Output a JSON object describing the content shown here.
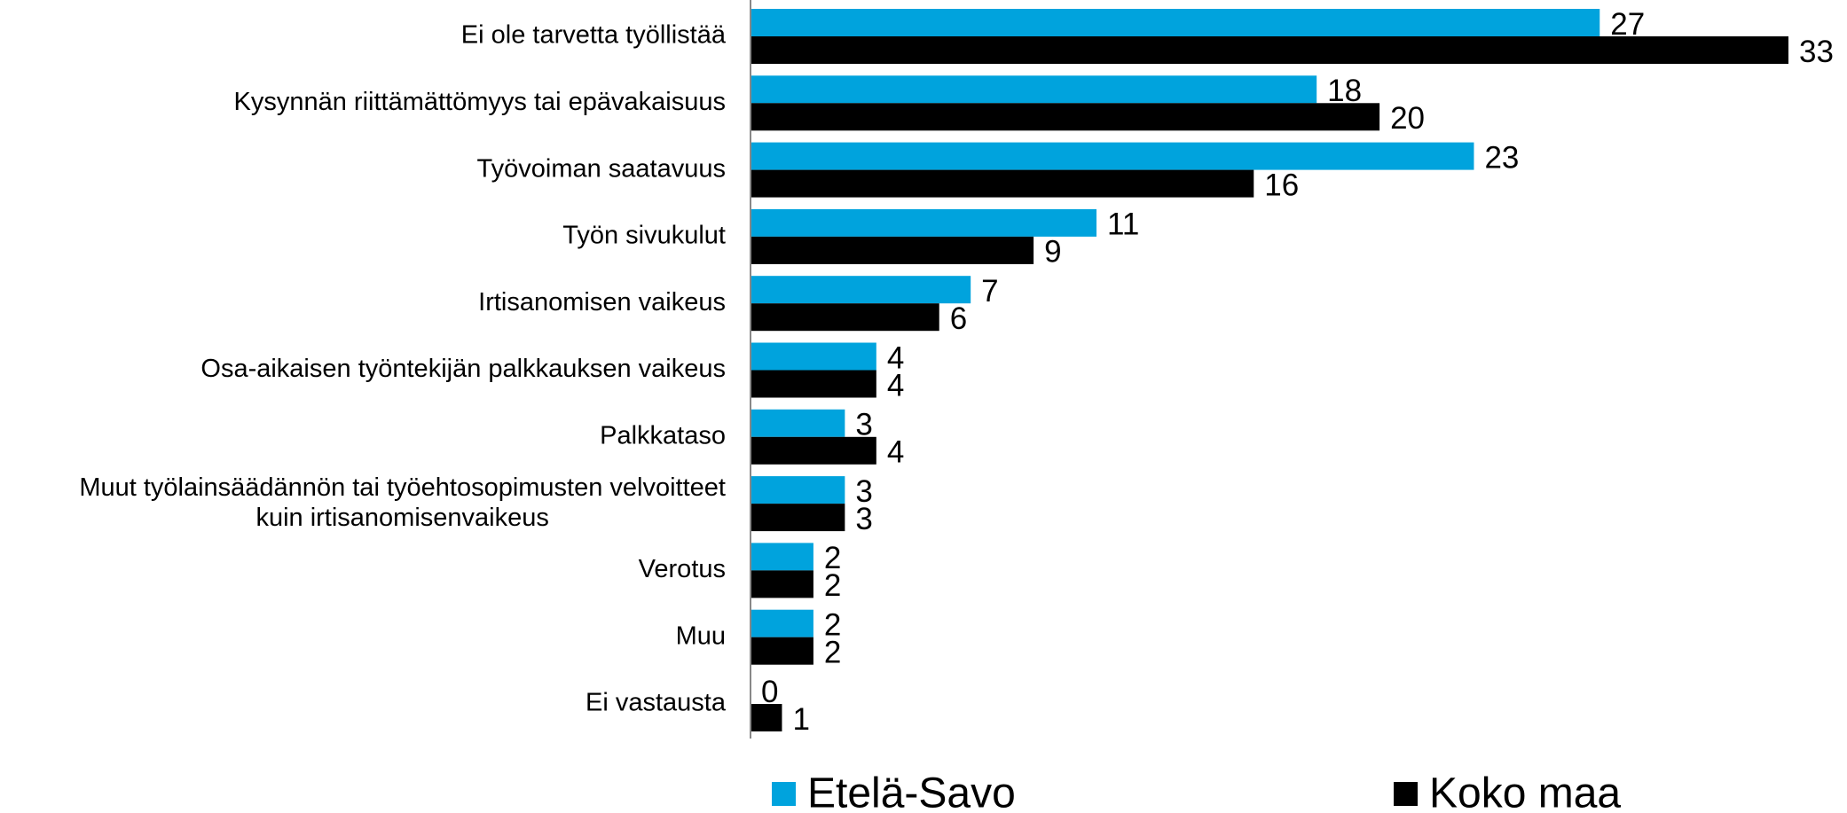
{
  "chart_data": {
    "type": "bar",
    "orientation": "horizontal",
    "categories": [
      "Ei ole tarvetta työllistää",
      "Kysynnän riittämättömyys tai epävakaisuus",
      "Työvoiman saatavuus",
      "Työn sivukulut",
      "Irtisanomisen vaikeus",
      "Osa-aikaisen työntekijän palkkauksen vaikeus",
      "Palkkataso",
      "Muut työlainsäädännön tai työehtosopimusten velvoitteet\nkuin irtisanomisenvaikeus",
      "Verotus",
      "Muu",
      "Ei vastausta"
    ],
    "series": [
      {
        "name": "Etelä-Savo",
        "color": "#00a3dd",
        "values": [
          27,
          18,
          23,
          11,
          7,
          4,
          3,
          3,
          2,
          2,
          0
        ]
      },
      {
        "name": "Koko maa",
        "color": "#000000",
        "values": [
          33,
          20,
          16,
          9,
          6,
          4,
          4,
          3,
          2,
          2,
          1
        ]
      }
    ],
    "xlim": [
      0,
      33
    ],
    "legend": "bottom"
  }
}
